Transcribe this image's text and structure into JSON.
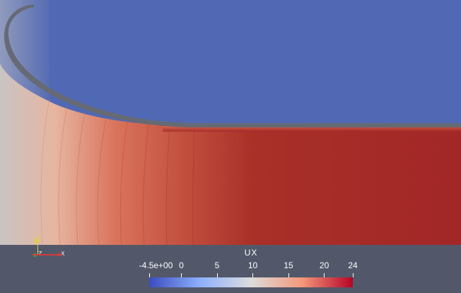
{
  "window": {
    "title": ""
  },
  "scene": {
    "field_name": "UX",
    "colors": {
      "upper_region": "#5168b4",
      "lower_region": "#a22727",
      "far_left_region": "#c4c2c4",
      "wall": "#676a73",
      "background": "#525869"
    }
  },
  "orientation_axes": {
    "y_label": "Y",
    "z_label": "Z",
    "x_label": "X",
    "y_color": "#e3d43a",
    "x_color": "#d43b3b",
    "z_color": "#2fa84a"
  },
  "colorbar": {
    "title": "UX",
    "range": [
      -4.5,
      24
    ],
    "tick_labels": [
      "-4.5e+00",
      "0",
      "5",
      "10",
      "15",
      "20",
      "24"
    ],
    "tick_values": [
      -4.5,
      0,
      5,
      10,
      15,
      20,
      24
    ],
    "colormap": "Cool to Warm",
    "colormap_stops": [
      "#3b4cc0",
      "#8db0fe",
      "#dddcdc",
      "#f4987a",
      "#b40426"
    ]
  }
}
